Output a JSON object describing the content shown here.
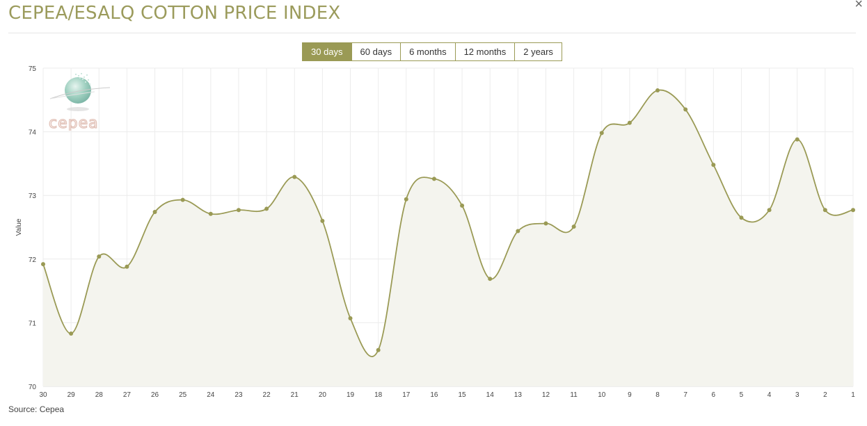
{
  "header": {
    "title": "CEPEA/ESALQ COTTON PRICE INDEX",
    "close_label": "×"
  },
  "tabs": [
    {
      "label": "30 days",
      "active": true
    },
    {
      "label": "60 days",
      "active": false
    },
    {
      "label": "6 months",
      "active": false
    },
    {
      "label": "12 months",
      "active": false
    },
    {
      "label": "2 years",
      "active": false
    }
  ],
  "logo": {
    "text": "cepea"
  },
  "footer": {
    "source": "Source: Cepea"
  },
  "colors": {
    "accent": "#9a9a55",
    "line": "#9a9a55",
    "area": "#f4f4ee",
    "grid": "#ececec",
    "title": "#9b9b5c"
  },
  "chart_data": {
    "type": "area",
    "title": "CEPEA/ESALQ COTTON PRICE INDEX",
    "xlabel": "",
    "ylabel": "Value",
    "ylim": [
      70,
      75
    ],
    "yticks": [
      70,
      71,
      72,
      73,
      74,
      75
    ],
    "grid": true,
    "categories": [
      "30",
      "29",
      "28",
      "27",
      "26",
      "25",
      "24",
      "23",
      "22",
      "21",
      "20",
      "19",
      "18",
      "17",
      "16",
      "15",
      "14",
      "13",
      "12",
      "11",
      "10",
      "9",
      "8",
      "7",
      "6",
      "5",
      "4",
      "3",
      "2",
      "1"
    ],
    "values": [
      71.92,
      70.83,
      72.04,
      71.88,
      72.74,
      72.93,
      72.71,
      72.77,
      72.79,
      73.29,
      72.6,
      71.07,
      70.57,
      72.94,
      73.26,
      72.84,
      71.69,
      72.44,
      72.56,
      72.51,
      73.98,
      74.14,
      74.65,
      74.35,
      73.48,
      72.65,
      72.77,
      73.88,
      72.77,
      72.77
    ]
  }
}
